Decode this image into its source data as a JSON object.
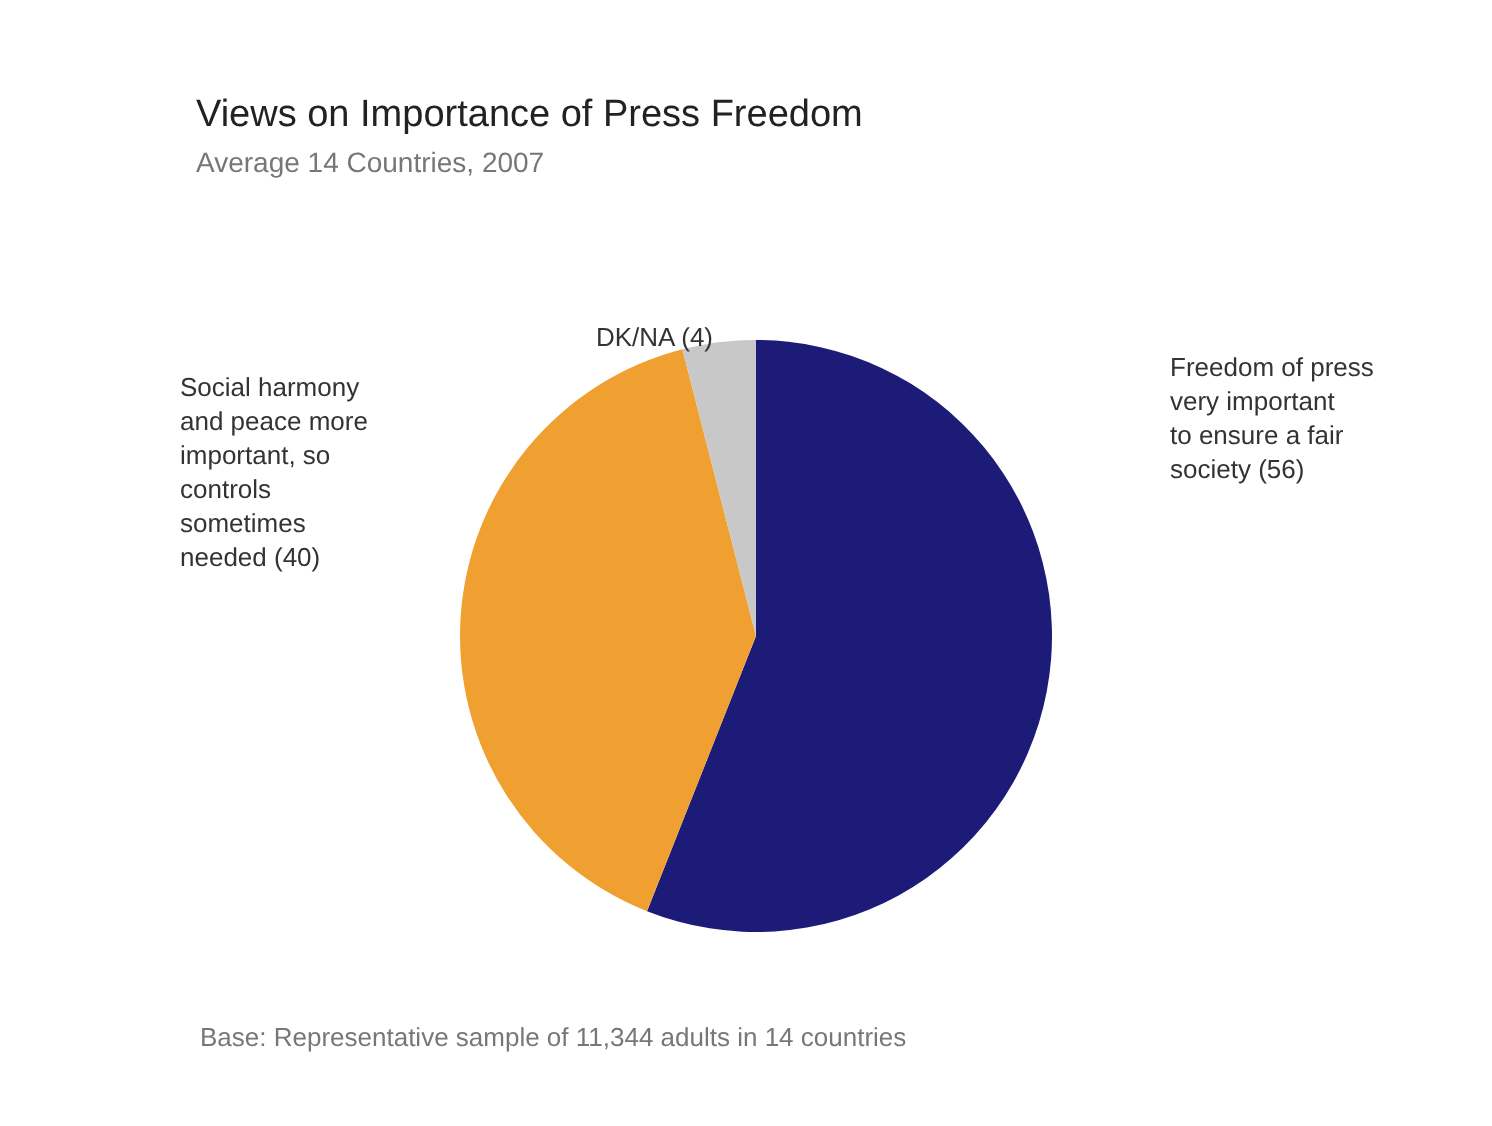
{
  "chart_data": {
    "type": "pie",
    "title": "Views on Importance of Press Freedom",
    "subtitle": "Average 14 Countries, 2007",
    "categories": [
      "Freedom of press very important to ensure a fair society (56)",
      "Social harmony and peace more important, so controls sometimes needed (40)",
      "DK/NA (4)"
    ],
    "values": [
      56,
      40,
      4
    ],
    "colors": [
      "#1c1c78",
      "#f0a030",
      "#c8c8c8"
    ],
    "annotations": [
      "Base: Representative sample of 11,344 adults in 14 countries"
    ]
  }
}
